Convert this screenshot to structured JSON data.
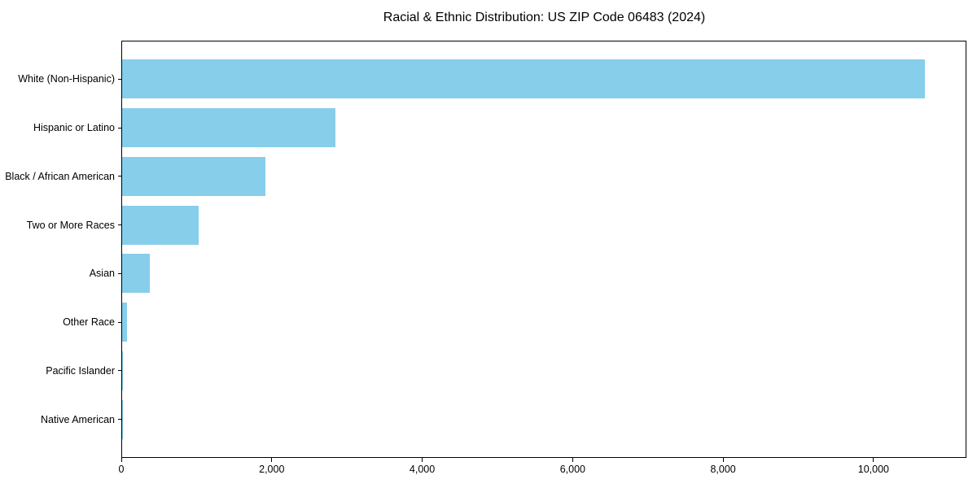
{
  "chart_data": {
    "type": "bar",
    "orientation": "horizontal",
    "title": "Racial & Ethnic Distribution: US ZIP Code 06483 (2024)",
    "categories": [
      "White (Non-Hispanic)",
      "Hispanic or Latino",
      "Black / African American",
      "Two or More Races",
      "Asian",
      "Other Race",
      "Pacific Islander",
      "Native American"
    ],
    "values": [
      10670,
      2840,
      1900,
      1020,
      370,
      60,
      12,
      2
    ],
    "xlabel": "",
    "ylabel": "",
    "xlim": [
      0,
      11235
    ],
    "xticks": [
      0,
      2000,
      4000,
      6000,
      8000,
      10000
    ],
    "xtick_labels": [
      "0",
      "2,000",
      "4,000",
      "6,000",
      "8,000",
      "10,000"
    ],
    "bar_color": "#87CEEB",
    "background": "#FFFFFF",
    "grid": false,
    "legend": false
  }
}
